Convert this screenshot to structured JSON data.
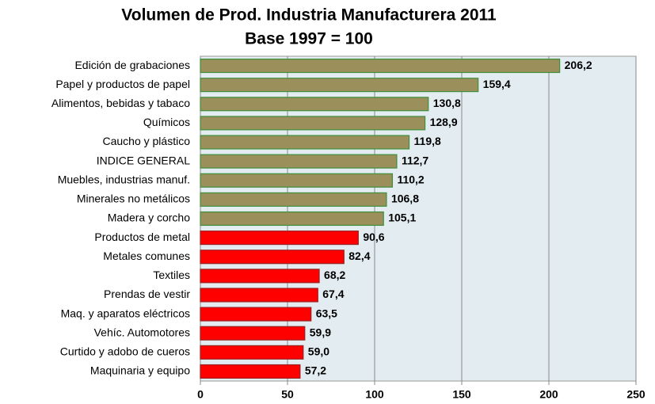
{
  "chart_data": {
    "type": "bar",
    "orientation": "horizontal",
    "title": "Volumen de Prod. Industria Manufacturera 2011",
    "subtitle": "Base 1997 = 100",
    "categories": [
      "Edición de grabaciones",
      "Papel y productos de papel",
      "Alimentos, bebidas y tabaco",
      "Químicos",
      "Caucho y plástico",
      "INDICE GENERAL",
      "Muebles, industrias manuf.",
      "Minerales no metálicos",
      "Madera y corcho",
      "Productos de metal",
      "Metales comunes",
      "Textiles",
      "Prendas de vestir",
      "Maq. y aparatos eléctricos",
      "Vehíc. Automotores",
      "Curtido y adobo de cueros",
      "Maquinaria y equipo"
    ],
    "values": [
      206.2,
      159.4,
      130.8,
      128.9,
      119.8,
      112.7,
      110.2,
      106.8,
      105.1,
      90.6,
      82.4,
      68.2,
      67.4,
      63.5,
      59.9,
      59.0,
      57.2
    ],
    "value_labels": [
      "206,2",
      "159,4",
      "130,8",
      "128,9",
      "119,8",
      "112,7",
      "110,2",
      "106,8",
      "105,1",
      "90,6",
      "82,4",
      "68,2",
      "67,4",
      "63,5",
      "59,9",
      "59,0",
      "57,2"
    ],
    "colors": [
      "#9b8f5b",
      "#9b8f5b",
      "#9b8f5b",
      "#9b8f5b",
      "#9b8f5b",
      "#9b8f5b",
      "#9b8f5b",
      "#9b8f5b",
      "#9b8f5b",
      "#ff0000",
      "#ff0000",
      "#ff0000",
      "#ff0000",
      "#ff0000",
      "#ff0000",
      "#ff0000",
      "#ff0000"
    ],
    "xlim": [
      0,
      250
    ],
    "xticks": [
      0,
      50,
      100,
      150,
      200,
      250
    ],
    "grid": true
  }
}
